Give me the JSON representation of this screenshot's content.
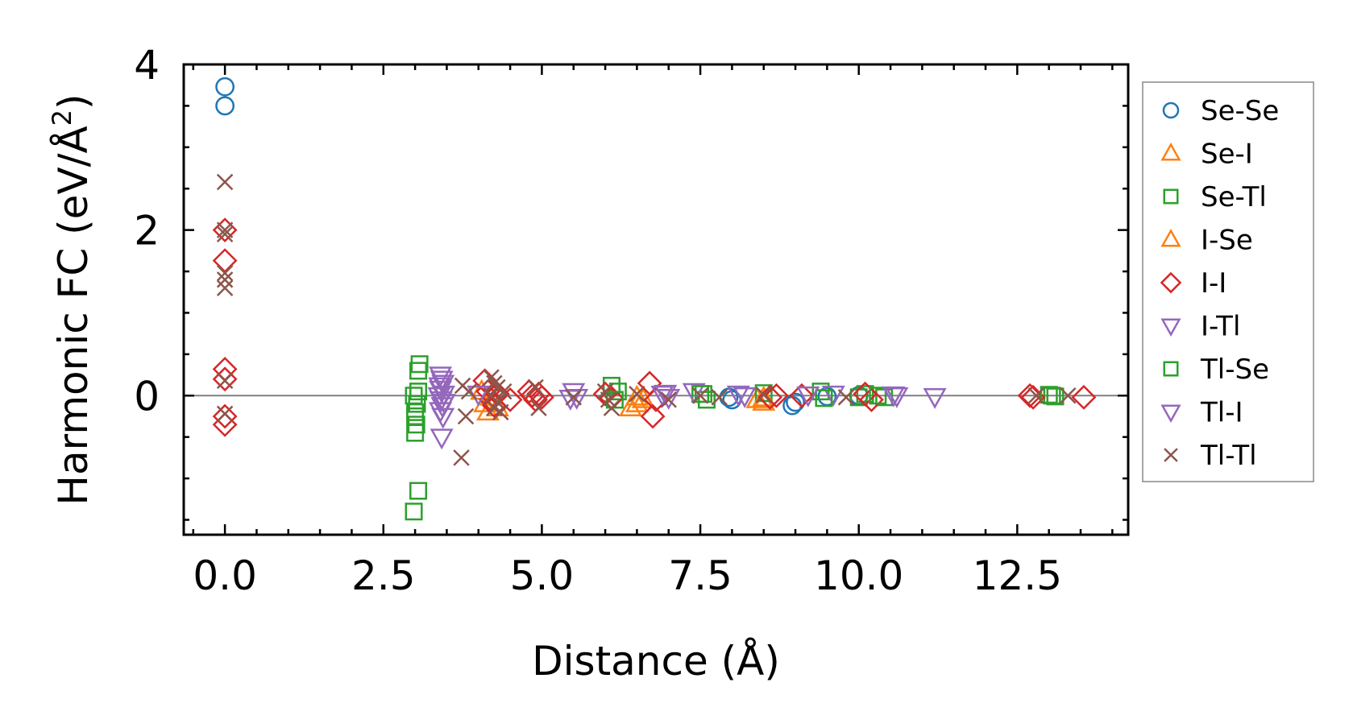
{
  "chart_data": {
    "type": "scatter",
    "title": "",
    "xlabel": "Distance (Å)",
    "ylabel_main": "Harmonic FC (eV/Å",
    "ylabel_sup": "2",
    "ylabel_close": ")",
    "xlim": [
      -0.65,
      14.25
    ],
    "ylim": [
      -1.68,
      4.0
    ],
    "xticks": [
      0.0,
      2.5,
      5.0,
      7.5,
      10.0,
      12.5
    ],
    "xtick_labels": [
      "0.0",
      "2.5",
      "5.0",
      "7.5",
      "10.0",
      "12.5"
    ],
    "yticks": [
      0,
      2,
      4
    ],
    "ytick_labels": [
      "0",
      "2",
      "4"
    ],
    "grid": false,
    "zero_line": true,
    "legend_position": "outside-right",
    "series": [
      {
        "name": "Se-Se",
        "marker": "circle",
        "color": "#1f77b4",
        "points": [
          [
            0,
            3.73
          ],
          [
            0,
            3.5
          ],
          [
            7.95,
            -0.02
          ],
          [
            8.0,
            -0.05
          ],
          [
            8.95,
            -0.12
          ],
          [
            9.0,
            -0.08
          ],
          [
            9.5,
            -0.01
          ],
          [
            10.0,
            0.0
          ]
        ]
      },
      {
        "name": "Se-I",
        "marker": "triangle-up",
        "color": "#ff7f0e",
        "points": [
          [
            4.05,
            0.05
          ],
          [
            4.1,
            -0.1
          ],
          [
            4.15,
            -0.2
          ],
          [
            4.3,
            -0.15
          ],
          [
            6.5,
            -0.1
          ],
          [
            6.6,
            -0.05
          ],
          [
            8.4,
            -0.05
          ],
          [
            8.5,
            -0.08
          ]
        ]
      },
      {
        "name": "Se-Tl",
        "marker": "square",
        "color": "#2ca02c",
        "points": [
          [
            2.98,
            -1.4
          ],
          [
            3.05,
            -1.15
          ],
          [
            3.0,
            -0.45
          ],
          [
            3.02,
            -0.35
          ],
          [
            3.0,
            -0.2
          ],
          [
            3.03,
            -0.1
          ],
          [
            2.98,
            0.0
          ],
          [
            3.05,
            0.3
          ],
          [
            3.07,
            0.38
          ],
          [
            6.1,
            0.12
          ],
          [
            6.2,
            0.05
          ],
          [
            7.5,
            0.02
          ],
          [
            7.6,
            -0.05
          ],
          [
            8.5,
            0.03
          ],
          [
            9.4,
            0.05
          ],
          [
            10.0,
            -0.02
          ],
          [
            10.1,
            0.02
          ],
          [
            10.4,
            -0.02
          ],
          [
            13.05,
            0.0
          ],
          [
            13.1,
            -0.01
          ]
        ]
      },
      {
        "name": "I-Se",
        "marker": "triangle-up",
        "color": "#ff7f0e",
        "points": [
          [
            4.2,
            -0.02
          ],
          [
            6.4,
            -0.15
          ],
          [
            6.5,
            -0.02
          ],
          [
            8.5,
            -0.03
          ]
        ]
      },
      {
        "name": "I-I",
        "marker": "diamond",
        "color": "#d62728",
        "points": [
          [
            0,
            2.0
          ],
          [
            0,
            1.63
          ],
          [
            0,
            0.32
          ],
          [
            0,
            0.2
          ],
          [
            0,
            -0.25
          ],
          [
            0,
            -0.35
          ],
          [
            4.1,
            0.18
          ],
          [
            4.15,
            0.05
          ],
          [
            4.2,
            -0.05
          ],
          [
            4.25,
            -0.12
          ],
          [
            4.3,
            0.02
          ],
          [
            4.5,
            -0.05
          ],
          [
            4.8,
            0.05
          ],
          [
            4.85,
            0.0
          ],
          [
            4.9,
            -0.05
          ],
          [
            4.95,
            0.02
          ],
          [
            5.0,
            -0.02
          ],
          [
            6.0,
            0.02
          ],
          [
            6.1,
            -0.03
          ],
          [
            6.7,
            0.15
          ],
          [
            6.75,
            -0.25
          ],
          [
            6.8,
            -0.05
          ],
          [
            8.6,
            -0.02
          ],
          [
            8.7,
            0.0
          ],
          [
            9.1,
            0.0
          ],
          [
            10.1,
            0.02
          ],
          [
            10.2,
            -0.05
          ],
          [
            12.7,
            0.0
          ],
          [
            12.75,
            -0.02
          ],
          [
            13.55,
            -0.02
          ]
        ]
      },
      {
        "name": "I-Tl",
        "marker": "triangle-down",
        "color": "#9467bd",
        "points": [
          [
            3.4,
            0.25
          ],
          [
            3.42,
            0.2
          ],
          [
            3.44,
            0.15
          ],
          [
            3.4,
            0.08
          ],
          [
            3.45,
            0.02
          ],
          [
            3.41,
            -0.05
          ],
          [
            3.43,
            -0.12
          ],
          [
            3.4,
            -0.18
          ],
          [
            3.44,
            -0.25
          ],
          [
            3.42,
            -0.5
          ],
          [
            4.0,
            0.02
          ],
          [
            5.5,
            0.05
          ],
          [
            5.55,
            -0.02
          ],
          [
            6.9,
            0.02
          ],
          [
            7.0,
            -0.02
          ],
          [
            7.4,
            0.05
          ],
          [
            8.2,
            0.0
          ],
          [
            9.6,
            0.02
          ],
          [
            10.6,
            0.0
          ],
          [
            11.2,
            -0.01
          ]
        ]
      },
      {
        "name": "Tl-Se",
        "marker": "square",
        "color": "#2ca02c",
        "points": [
          [
            3.0,
            -0.25
          ],
          [
            3.05,
            0.05
          ],
          [
            6.15,
            -0.05
          ],
          [
            7.55,
            0.02
          ],
          [
            9.45,
            -0.03
          ],
          [
            10.3,
            0.0
          ],
          [
            13.0,
            0.01
          ]
        ]
      },
      {
        "name": "Tl-I",
        "marker": "triangle-down",
        "color": "#9467bd",
        "points": [
          [
            3.38,
            0.0
          ],
          [
            3.46,
            -0.08
          ],
          [
            3.39,
            0.12
          ],
          [
            5.45,
            -0.03
          ],
          [
            6.95,
            0.03
          ],
          [
            8.1,
            0.02
          ],
          [
            9.2,
            0.01
          ],
          [
            10.55,
            0.01
          ]
        ]
      },
      {
        "name": "Tl-Tl",
        "marker": "x",
        "color": "#8c564b",
        "points": [
          [
            0,
            2.58
          ],
          [
            0,
            2.0
          ],
          [
            0,
            1.95
          ],
          [
            0,
            1.48
          ],
          [
            0,
            1.4
          ],
          [
            0,
            1.3
          ],
          [
            0,
            0.18
          ],
          [
            0,
            -0.22
          ],
          [
            3.73,
            -0.75
          ],
          [
            3.8,
            -0.25
          ],
          [
            3.75,
            0.12
          ],
          [
            3.85,
            0.05
          ],
          [
            4.2,
            0.22
          ],
          [
            4.25,
            0.15
          ],
          [
            4.3,
            0.1
          ],
          [
            4.2,
            0.0
          ],
          [
            4.3,
            -0.08
          ],
          [
            4.25,
            -0.15
          ],
          [
            4.35,
            -0.2
          ],
          [
            4.4,
            0.05
          ],
          [
            4.9,
            0.1
          ],
          [
            4.95,
            -0.15
          ],
          [
            5.5,
            -0.02
          ],
          [
            6.0,
            0.05
          ],
          [
            6.05,
            -0.05
          ],
          [
            6.1,
            -0.15
          ],
          [
            6.5,
            0.02
          ],
          [
            7.0,
            -0.05
          ],
          [
            7.5,
            0.0
          ],
          [
            7.8,
            -0.02
          ],
          [
            8.5,
            0.01
          ],
          [
            9.8,
            -0.02
          ],
          [
            12.8,
            0.0
          ],
          [
            13.3,
            0.0
          ]
        ]
      }
    ]
  }
}
